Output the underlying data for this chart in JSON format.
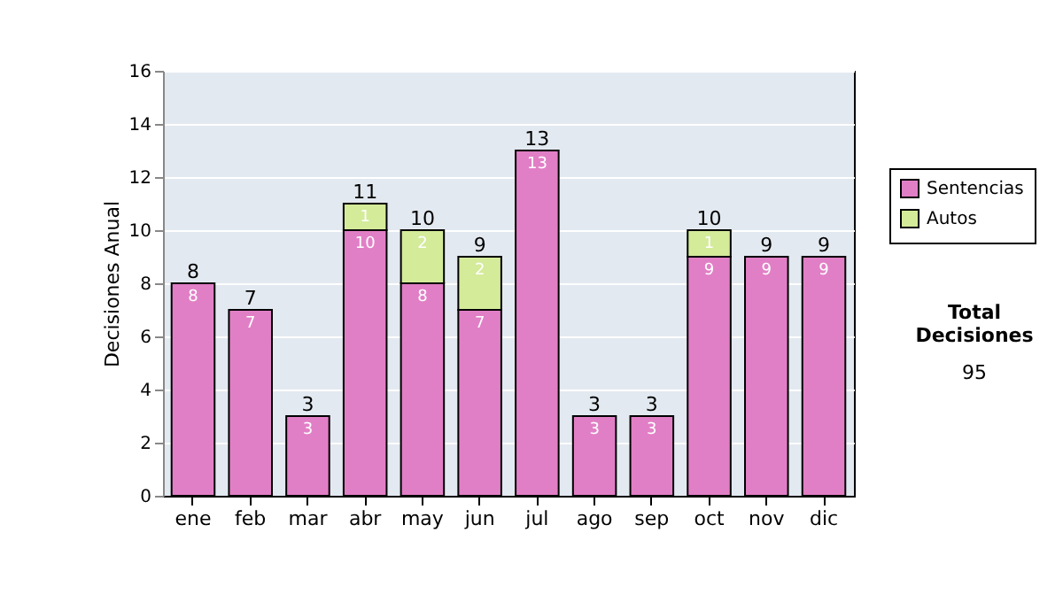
{
  "chart_data": {
    "type": "bar",
    "stacked": true,
    "ylabel": "Decisiones Anual",
    "categories": [
      "ene",
      "feb",
      "mar",
      "abr",
      "may",
      "jun",
      "jul",
      "ago",
      "sep",
      "oct",
      "nov",
      "dic"
    ],
    "series": [
      {
        "name": "Sentencias",
        "color": "#e17fc6",
        "values": [
          8,
          7,
          3,
          10,
          8,
          7,
          13,
          3,
          3,
          9,
          9,
          9
        ]
      },
      {
        "name": "Autos",
        "color": "#d4eb9a",
        "values": [
          null,
          null,
          null,
          1,
          2,
          2,
          null,
          null,
          null,
          1,
          null,
          null
        ]
      }
    ],
    "totals": [
      "8",
      "7",
      "3",
      "11",
      "10",
      "9",
      "13",
      "3",
      "3",
      "10",
      "9",
      "9"
    ],
    "data_labels": true,
    "ylim": [
      0,
      16
    ],
    "yticks": [
      0,
      2,
      4,
      6,
      8,
      10,
      12,
      14,
      16
    ],
    "grid": "y",
    "legend": "right",
    "annotations": [
      "Total Decisiones",
      "95"
    ]
  }
}
